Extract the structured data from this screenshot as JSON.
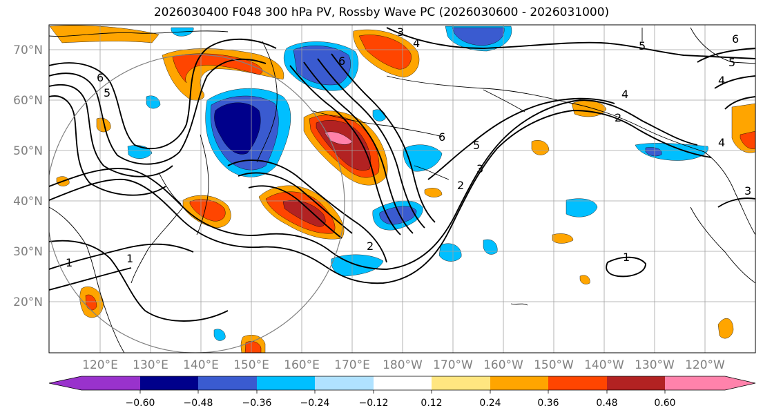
{
  "title": "2026030400 F048 300 hPa PV, Rossby Wave PC (2026030600 - 2026031000)",
  "map": {
    "lat_labels": [
      "70°N",
      "60°N",
      "50°N",
      "40°N",
      "30°N",
      "20°N"
    ],
    "lon_labels": [
      "120°E",
      "130°E",
      "140°E",
      "150°E",
      "160°E",
      "170°E",
      "180°W",
      "170°W",
      "160°W",
      "150°W",
      "140°W",
      "130°W",
      "120°W"
    ],
    "contour_labels": [
      "3",
      "4",
      "5",
      "6",
      "5",
      "4",
      "6",
      "6",
      "5",
      "4",
      "6",
      "5",
      "4",
      "3",
      "2",
      "2",
      "1",
      "1",
      "1",
      "2",
      "3"
    ]
  },
  "colorbar": {
    "ticks": [
      "−0.60",
      "−0.48",
      "−0.36",
      "−0.24",
      "−0.12",
      "0.12",
      "0.24",
      "0.36",
      "0.48",
      "0.60"
    ],
    "colors": [
      "#9932cc",
      "#00008b",
      "#3a5bd0",
      "#00bfff",
      "#b0e2ff",
      "#ffffff",
      "#ffe680",
      "#ffa500",
      "#ff4500",
      "#b22222",
      "#ff82ab"
    ]
  },
  "legend_colors": {
    "neg1": "#b0e2ff",
    "neg2": "#00bfff",
    "neg3": "#3a5bd0",
    "neg4": "#00008b",
    "pos1": "#ffe680",
    "pos2": "#ffa500",
    "pos3": "#ff4500",
    "pos4": "#b22222",
    "pos5": "#ff82ab"
  }
}
